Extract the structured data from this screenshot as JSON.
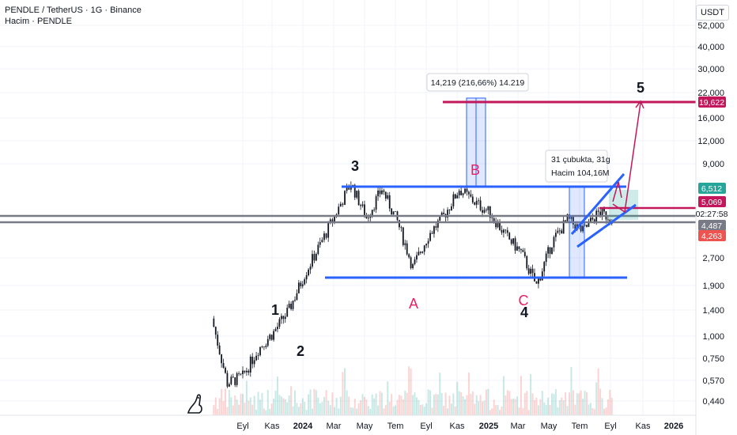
{
  "header": {
    "symbol_line": "PENDLE / TetherUS · 1G · Binance",
    "volume_line": "Hacim · PENDLE"
  },
  "currency_button": "USDT",
  "time_axis": [
    "Eyl",
    "Kas",
    "2024",
    "Mar",
    "May",
    "Tem",
    "Eyl",
    "Kas",
    "2025",
    "Mar",
    "May",
    "Tem",
    "Eyl",
    "Kas",
    "2026"
  ],
  "price_axis": [
    "52,000",
    "40,000",
    "30,000",
    "22,000",
    "16,000",
    "12,000",
    "9,000",
    "2,700",
    "1,900",
    "1,400",
    "1,000",
    "0,750",
    "0,570",
    "0,440"
  ],
  "price_badges": [
    {
      "label": "19,622",
      "bg": "#c2185b",
      "fg": "#ffffff"
    },
    {
      "label": "6,512",
      "bg": "#26a69a",
      "fg": "#ffffff"
    },
    {
      "label": "5,069",
      "bg": "#c2185b",
      "fg": "#ffffff"
    },
    {
      "label": "02:27:58",
      "bg": "#ffffff",
      "fg": "#131722"
    },
    {
      "label": "4,487",
      "bg": "#787b86",
      "fg": "#ffffff"
    },
    {
      "label": "4,263",
      "bg": "#ef5350",
      "fg": "#ffffff"
    }
  ],
  "annotations": {
    "measure_label": "14,219 (216,66%) 14.219",
    "bars_label_1": "31 çubukta, 31g",
    "bars_label_2": "Hacim 104,16M",
    "wave_labels": [
      "1",
      "2",
      "3",
      "4",
      "5"
    ],
    "corrective_labels": [
      "A",
      "B",
      "C"
    ]
  },
  "chart_data": {
    "type": "candlestick",
    "title": "PENDLE / TetherUS · 1G · Binance",
    "y_scale": "log",
    "ylim": [
      0.4,
      60
    ],
    "x_range": [
      "2023-07",
      "2026-01"
    ],
    "price_path": [
      {
        "date": "2023-07",
        "price": 1.25
      },
      {
        "date": "2023-08",
        "price": 0.55
      },
      {
        "date": "2023-09",
        "price": 0.6
      },
      {
        "date": "2023-10",
        "price": 0.85
      },
      {
        "date": "2023-11",
        "price": 1.05
      },
      {
        "date": "2023-12",
        "price": 1.4
      },
      {
        "date": "2024-01",
        "price": 2.2
      },
      {
        "date": "2024-02",
        "price": 3.2
      },
      {
        "date": "2024-04",
        "price": 7.0
      },
      {
        "date": "2024-05",
        "price": 4.5
      },
      {
        "date": "2024-06",
        "price": 6.5
      },
      {
        "date": "2024-07",
        "price": 4.3
      },
      {
        "date": "2024-08",
        "price": 2.4
      },
      {
        "date": "2024-09",
        "price": 3.6
      },
      {
        "date": "2024-10",
        "price": 4.6
      },
      {
        "date": "2024-11",
        "price": 6.5
      },
      {
        "date": "2024-12",
        "price": 5.5
      },
      {
        "date": "2025-01",
        "price": 4.8
      },
      {
        "date": "2025-02",
        "price": 3.6
      },
      {
        "date": "2025-03",
        "price": 2.9
      },
      {
        "date": "2025-04",
        "price": 1.9
      },
      {
        "date": "2025-05",
        "price": 3.3
      },
      {
        "date": "2025-06",
        "price": 4.4
      },
      {
        "date": "2025-07",
        "price": 3.8
      },
      {
        "date": "2025-08",
        "price": 4.8
      },
      {
        "date": "2025-09",
        "price": 4.5
      }
    ],
    "horizontal_levels": [
      {
        "price": 19.622,
        "color": "#c2185b"
      },
      {
        "price": 6.512,
        "color": "#2962ff"
      },
      {
        "price": 5.069,
        "color": "#c2185b"
      },
      {
        "price": 4.487,
        "color": "#787b86"
      },
      {
        "price": 4.263,
        "color": "#787b86"
      },
      {
        "price": 1.95,
        "color": "#2962ff"
      }
    ]
  }
}
